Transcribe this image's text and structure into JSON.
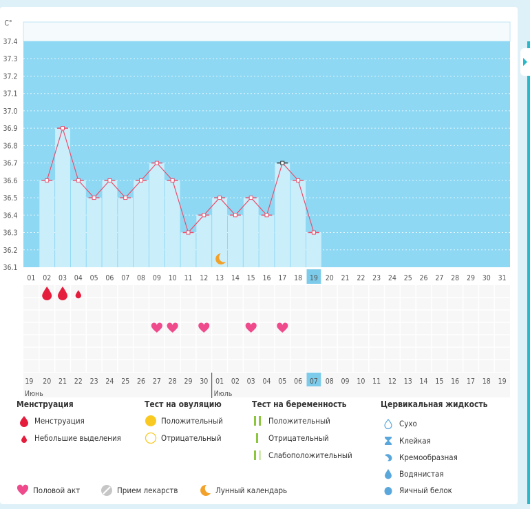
{
  "chart_data": {
    "type": "line",
    "y_unit": "C°",
    "ylim": [
      36.1,
      37.4
    ],
    "y_ticks": [
      "37.4",
      "37.3",
      "37.2",
      "37.1",
      "37.0",
      "36.9",
      "36.8",
      "36.7",
      "36.6",
      "36.5",
      "36.4",
      "36.3",
      "36.2",
      "36.1"
    ],
    "cycle_days": [
      "01",
      "02",
      "03",
      "04",
      "05",
      "06",
      "07",
      "08",
      "09",
      "10",
      "11",
      "12",
      "13",
      "14",
      "15",
      "16",
      "17",
      "18",
      "19",
      "20",
      "21",
      "22",
      "23",
      "24",
      "25",
      "26",
      "27",
      "28",
      "29",
      "30",
      "31"
    ],
    "temperatures": [
      null,
      36.6,
      36.9,
      36.6,
      36.5,
      36.6,
      36.5,
      36.6,
      36.7,
      36.6,
      36.3,
      36.4,
      36.5,
      36.4,
      36.5,
      36.4,
      36.7,
      36.6,
      36.3
    ],
    "current_day_index": 18,
    "dates": [
      "19",
      "20",
      "21",
      "22",
      "23",
      "24",
      "25",
      "26",
      "27",
      "28",
      "29",
      "30",
      "01",
      "02",
      "03",
      "04",
      "05",
      "06",
      "07",
      "08",
      "09",
      "10",
      "11",
      "12",
      "13",
      "14",
      "15",
      "16",
      "17",
      "18",
      "19"
    ],
    "highlight_date_indices": [
      1,
      2,
      8,
      9,
      15,
      16,
      22,
      23,
      29,
      30
    ],
    "month_labels": [
      {
        "label": "Июнь",
        "index": 0
      },
      {
        "label": "Июль",
        "index": 12
      }
    ],
    "menstruation_days": [
      {
        "index": 1,
        "kind": "heavy"
      },
      {
        "index": 2,
        "kind": "heavy"
      },
      {
        "index": 3,
        "kind": "light"
      }
    ],
    "intercourse_days": [
      8,
      9,
      11,
      14,
      16
    ],
    "moon_days": [
      12
    ],
    "colors": {
      "pre_band": "#8fd8f4",
      "bar_fill": "#cbeefb",
      "line": "#e8506d",
      "grid": "#ffffff",
      "highlight": "#7ccbea",
      "red_date": "#e8204a",
      "drop": "#e51c3c",
      "heart": "#ee4a8c",
      "moon": "#f2a22a"
    }
  },
  "legend": {
    "menstruation": {
      "title": "Менструация",
      "items": [
        "Менструация",
        "Небольшие выделения"
      ]
    },
    "ovulation": {
      "title": "Тест на овуляцию",
      "items": [
        "Положительный",
        "Отрицательный"
      ]
    },
    "pregnancy": {
      "title": "Тест на беременность",
      "items": [
        "Положительный",
        "Отрицательный",
        "Слабоположительный"
      ]
    },
    "cervical": {
      "title": "Цервикальная жидкость",
      "items": [
        "Сухо",
        "Клейкая",
        "Кремообразная",
        "Водянистая",
        "Яичный белок"
      ]
    },
    "bottom": [
      "Половой акт",
      "Прием лекарств",
      "Лунный календарь"
    ]
  },
  "icons": {
    "drop": "drop-icon",
    "small_drop": "small-drop-icon",
    "circle": "circle-icon",
    "bars": "test-strip-icon",
    "heart": "heart-icon",
    "pill": "pill-icon",
    "moon": "moon-icon"
  }
}
